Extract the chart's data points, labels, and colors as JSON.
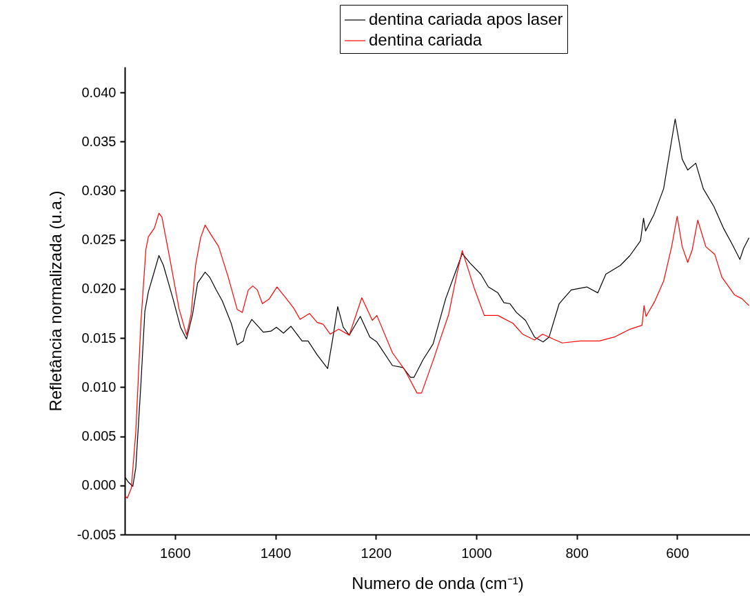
{
  "chart_data": {
    "type": "line",
    "xlabel": "Numero de onda (cm⁻¹)",
    "ylabel": "Refletância normalizada (u.a.)",
    "xlim": [
      1700,
      455
    ],
    "ylim": [
      -0.005,
      0.0426
    ],
    "xticks": [
      1600,
      1400,
      1200,
      1000,
      800,
      600
    ],
    "yticks": [
      {
        "value": -0.005,
        "label": "-0.005"
      },
      {
        "value": 0.0,
        "label": "0.000"
      },
      {
        "value": 0.005,
        "label": "0.005"
      },
      {
        "value": 0.01,
        "label": "0.010"
      },
      {
        "value": 0.015,
        "label": "0.015"
      },
      {
        "value": 0.02,
        "label": "0.020"
      },
      {
        "value": 0.025,
        "label": "0.025"
      },
      {
        "value": 0.03,
        "label": "0.030"
      },
      {
        "value": 0.035,
        "label": "0.035"
      },
      {
        "value": 0.04,
        "label": "0.040"
      }
    ],
    "grid": false,
    "legend": "top right",
    "marker": "none",
    "line_style": "solid",
    "series": [
      {
        "name": "dentina cariada apos laser",
        "color": "#000000",
        "x": [
          1699,
          1693,
          1684,
          1678,
          1668,
          1660,
          1653,
          1641,
          1632,
          1623,
          1604,
          1589,
          1577,
          1565,
          1555,
          1540,
          1531,
          1518,
          1506,
          1488,
          1476,
          1464,
          1458,
          1447,
          1424,
          1409,
          1398,
          1384,
          1369,
          1347,
          1335,
          1317,
          1296,
          1286,
          1276,
          1265,
          1253,
          1231,
          1212,
          1198,
          1167,
          1146,
          1131,
          1124,
          1106,
          1086,
          1061,
          1043,
          1028,
          1012,
          991,
          976,
          957,
          945,
          933,
          920,
          902,
          884,
          867,
          855,
          835,
          811,
          780,
          758,
          742,
          713,
          694,
          673,
          667,
          663,
          646,
          627,
          604,
          590,
          579,
          563,
          548,
          527,
          508,
          490,
          475,
          468,
          457
        ],
        "values": [
          0.0008,
          0.00035,
          -0.0001,
          0.0018,
          0.0102,
          0.0177,
          0.0197,
          0.0218,
          0.0234,
          0.0224,
          0.019,
          0.0161,
          0.0149,
          0.0174,
          0.0206,
          0.0217,
          0.0212,
          0.0199,
          0.0188,
          0.0165,
          0.0143,
          0.0147,
          0.0159,
          0.0169,
          0.0156,
          0.0157,
          0.0161,
          0.0155,
          0.0162,
          0.0147,
          0.0147,
          0.0133,
          0.0119,
          0.0149,
          0.0182,
          0.0161,
          0.0153,
          0.0172,
          0.0151,
          0.0146,
          0.0122,
          0.012,
          0.011,
          0.011,
          0.0128,
          0.0144,
          0.019,
          0.0215,
          0.0236,
          0.0226,
          0.0215,
          0.0202,
          0.0196,
          0.0186,
          0.0185,
          0.0176,
          0.0168,
          0.0151,
          0.0146,
          0.0151,
          0.0185,
          0.0199,
          0.0202,
          0.0196,
          0.0215,
          0.0224,
          0.0234,
          0.0249,
          0.0272,
          0.0259,
          0.0276,
          0.0302,
          0.0373,
          0.0332,
          0.0321,
          0.0328,
          0.0302,
          0.0284,
          0.0262,
          0.0245,
          0.023,
          0.0241,
          0.0252
        ]
      },
      {
        "name": "dentina cariada",
        "color": "#ff0000",
        "x": [
          1699,
          1695,
          1687,
          1678,
          1668,
          1658,
          1653,
          1641,
          1632,
          1626,
          1610,
          1592,
          1577,
          1568,
          1559,
          1549,
          1540,
          1528,
          1513,
          1494,
          1476,
          1466,
          1454,
          1445,
          1436,
          1426,
          1412,
          1397,
          1378,
          1363,
          1351,
          1332,
          1317,
          1305,
          1291,
          1274,
          1253,
          1228,
          1207,
          1198,
          1167,
          1143,
          1118,
          1109,
          1084,
          1073,
          1055,
          1040,
          1028,
          1003,
          984,
          957,
          927,
          908,
          884,
          868,
          847,
          829,
          793,
          755,
          725,
          694,
          670,
          666,
          662,
          645,
          627,
          611,
          600,
          590,
          579,
          570,
          559,
          543,
          525,
          511,
          486,
          471,
          457
        ],
        "values": [
          -0.0011,
          -0.0013,
          -0.0003,
          0.0055,
          0.0165,
          0.024,
          0.0253,
          0.0262,
          0.0277,
          0.0273,
          0.023,
          0.018,
          0.0153,
          0.0174,
          0.0224,
          0.0252,
          0.0265,
          0.0255,
          0.0243,
          0.0212,
          0.0179,
          0.0176,
          0.0199,
          0.0203,
          0.0199,
          0.0185,
          0.019,
          0.0202,
          0.019,
          0.018,
          0.0169,
          0.0175,
          0.0166,
          0.0164,
          0.0154,
          0.0159,
          0.0153,
          0.0191,
          0.0168,
          0.0173,
          0.0135,
          0.0118,
          0.0094,
          0.0094,
          0.013,
          0.0147,
          0.0174,
          0.0212,
          0.0239,
          0.0199,
          0.0173,
          0.0173,
          0.0165,
          0.0154,
          0.0148,
          0.0154,
          0.0149,
          0.0145,
          0.0147,
          0.0147,
          0.0151,
          0.0159,
          0.0163,
          0.0183,
          0.0172,
          0.0187,
          0.0208,
          0.0243,
          0.0274,
          0.0243,
          0.0227,
          0.024,
          0.027,
          0.0243,
          0.0235,
          0.0212,
          0.0194,
          0.019,
          0.0183
        ]
      }
    ]
  }
}
